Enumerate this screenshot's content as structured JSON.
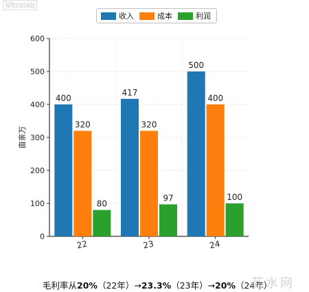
{
  "chart_data": {
    "type": "bar",
    "categories": [
      "22",
      "23",
      "24"
    ],
    "series": [
      {
        "name": "收入",
        "values": [
          400,
          417,
          500
        ],
        "color": "#1f77b4"
      },
      {
        "name": "成本",
        "values": [
          320,
          320,
          400
        ],
        "color": "#ff7f0e"
      },
      {
        "name": "利润",
        "values": [
          80,
          97,
          100
        ],
        "color": "#2ca02c"
      }
    ],
    "ylabel": "亩亲万",
    "ylim": [
      0,
      600
    ],
    "yticks": [
      0,
      100,
      200,
      300,
      400,
      500,
      600
    ],
    "grid": true,
    "legend_position": "top"
  },
  "note": {
    "prefix": "毛利率从",
    "p1": "20%",
    "y1": "（22年）→",
    "p2": "23.3%",
    "y2": "（23年）→",
    "p3": "20%",
    "y3": "（24年）"
  },
  "watermark_top": "Vitrolab",
  "watermark": "芸水网"
}
